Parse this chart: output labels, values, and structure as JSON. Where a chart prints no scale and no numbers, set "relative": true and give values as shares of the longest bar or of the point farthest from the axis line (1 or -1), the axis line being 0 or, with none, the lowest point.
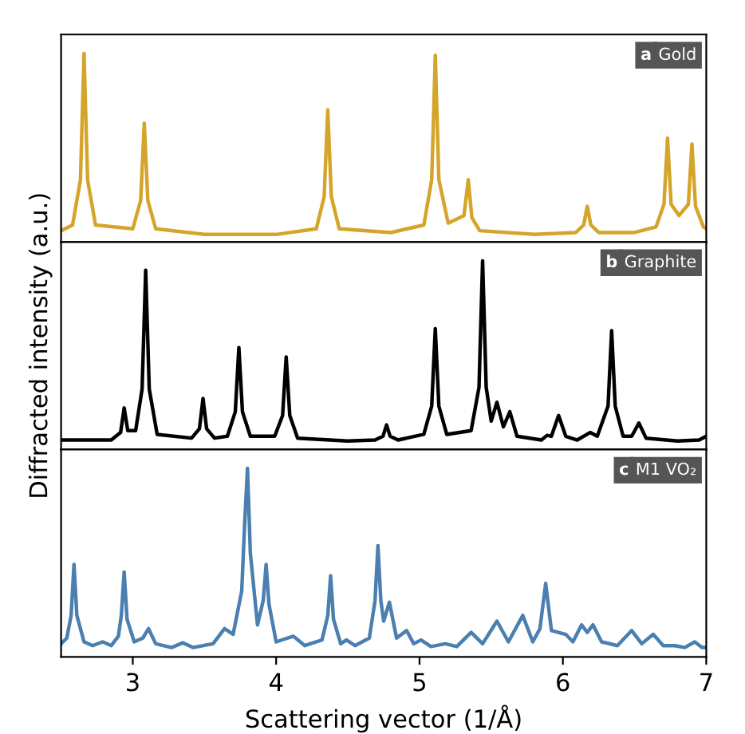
{
  "chart_data": [
    {
      "type": "line",
      "relative": true,
      "xlim": [
        2.5,
        7
      ],
      "xticks": [
        3,
        4,
        5,
        6,
        7
      ],
      "tick_labels": false,
      "annotations": [
        "a"
      ],
      "legend": false,
      "grid": false,
      "series": [
        {
          "name": "Gold",
          "color": "#d4a52a",
          "x": [
            2.5,
            2.58,
            2.635,
            2.66,
            2.685,
            2.74,
            3.0,
            3.055,
            3.08,
            3.105,
            3.16,
            3.5,
            4.0,
            4.28,
            4.335,
            4.36,
            4.385,
            4.44,
            4.8,
            5.03,
            5.085,
            5.11,
            5.135,
            5.2,
            5.31,
            5.34,
            5.365,
            5.42,
            5.8,
            6.09,
            6.145,
            6.17,
            6.195,
            6.25,
            6.5,
            6.65,
            6.705,
            6.73,
            6.755,
            6.81,
            6.875,
            6.9,
            6.925,
            6.98,
            7.0
          ],
          "values": [
            0.06,
            0.09,
            0.33,
            1.0,
            0.33,
            0.09,
            0.07,
            0.22,
            0.63,
            0.22,
            0.07,
            0.04,
            0.04,
            0.07,
            0.24,
            0.7,
            0.24,
            0.07,
            0.05,
            0.09,
            0.33,
            0.99,
            0.33,
            0.1,
            0.14,
            0.33,
            0.13,
            0.06,
            0.04,
            0.05,
            0.09,
            0.19,
            0.09,
            0.05,
            0.05,
            0.08,
            0.2,
            0.55,
            0.2,
            0.14,
            0.2,
            0.52,
            0.19,
            0.08,
            0.07
          ]
        }
      ]
    },
    {
      "type": "line",
      "relative": true,
      "xlim": [
        2.5,
        7
      ],
      "xticks": [
        3,
        4,
        5,
        6,
        7
      ],
      "tick_labels": false,
      "annotations": [
        "b"
      ],
      "ylabel": "Diffracted intensity (a.u.)",
      "legend": false,
      "grid": false,
      "series": [
        {
          "name": "Graphite",
          "color": "#000000",
          "x": [
            2.5,
            2.85,
            2.915,
            2.94,
            2.965,
            3.02,
            3.065,
            3.09,
            3.115,
            3.17,
            3.41,
            3.465,
            3.49,
            3.515,
            3.57,
            3.66,
            3.715,
            3.74,
            3.765,
            3.82,
            3.99,
            4.045,
            4.07,
            4.095,
            4.15,
            4.5,
            4.69,
            4.745,
            4.77,
            4.795,
            4.85,
            5.03,
            5.085,
            5.11,
            5.135,
            5.19,
            5.36,
            5.415,
            5.44,
            5.465,
            5.5,
            5.54,
            5.585,
            5.63,
            5.68,
            5.85,
            5.89,
            5.92,
            5.97,
            6.02,
            6.1,
            6.19,
            6.24,
            6.315,
            6.34,
            6.365,
            6.42,
            6.48,
            6.53,
            6.58,
            6.8,
            6.95,
            7.0
          ],
          "values": [
            0.05,
            0.05,
            0.09,
            0.22,
            0.1,
            0.1,
            0.32,
            0.95,
            0.32,
            0.08,
            0.06,
            0.11,
            0.27,
            0.11,
            0.06,
            0.07,
            0.2,
            0.54,
            0.2,
            0.07,
            0.07,
            0.18,
            0.49,
            0.18,
            0.06,
            0.045,
            0.05,
            0.07,
            0.13,
            0.07,
            0.05,
            0.08,
            0.23,
            0.64,
            0.23,
            0.08,
            0.1,
            0.33,
            1.0,
            0.33,
            0.15,
            0.25,
            0.12,
            0.2,
            0.07,
            0.05,
            0.075,
            0.07,
            0.18,
            0.07,
            0.05,
            0.09,
            0.07,
            0.23,
            0.63,
            0.23,
            0.07,
            0.07,
            0.14,
            0.06,
            0.045,
            0.05,
            0.07
          ]
        }
      ]
    },
    {
      "type": "line",
      "relative": true,
      "xlim": [
        2.5,
        7
      ],
      "xticks": [
        3,
        4,
        5,
        6,
        7
      ],
      "tick_labels": "x",
      "annotations": [
        "c"
      ],
      "xlabel": "Scattering vector (1/Å)",
      "legend": false,
      "grid": false,
      "series": [
        {
          "name": "M1 VO₂",
          "color": "#4a7fb0",
          "x": [
            2.5,
            2.54,
            2.57,
            2.59,
            2.61,
            2.66,
            2.72,
            2.79,
            2.85,
            2.9,
            2.92,
            2.94,
            2.96,
            3.01,
            3.07,
            3.11,
            3.16,
            3.27,
            3.35,
            3.42,
            3.56,
            3.64,
            3.7,
            3.76,
            3.78,
            3.8,
            3.82,
            3.87,
            3.91,
            3.93,
            3.95,
            4.0,
            4.12,
            4.2,
            4.32,
            4.36,
            4.38,
            4.4,
            4.45,
            4.49,
            4.55,
            4.65,
            4.69,
            4.71,
            4.73,
            4.75,
            4.79,
            4.84,
            4.91,
            4.96,
            5.01,
            5.08,
            5.18,
            5.26,
            5.36,
            5.44,
            5.54,
            5.62,
            5.72,
            5.79,
            5.84,
            5.88,
            5.92,
            6.02,
            6.07,
            6.13,
            6.17,
            6.21,
            6.27,
            6.38,
            6.48,
            6.55,
            6.63,
            6.7,
            6.78,
            6.85,
            6.92,
            6.97,
            7.0
          ],
          "values": [
            0.07,
            0.1,
            0.22,
            0.49,
            0.22,
            0.08,
            0.06,
            0.08,
            0.06,
            0.11,
            0.22,
            0.45,
            0.2,
            0.08,
            0.1,
            0.15,
            0.07,
            0.05,
            0.075,
            0.05,
            0.07,
            0.15,
            0.12,
            0.35,
            0.7,
            1.0,
            0.55,
            0.17,
            0.3,
            0.49,
            0.28,
            0.08,
            0.11,
            0.06,
            0.09,
            0.22,
            0.43,
            0.2,
            0.07,
            0.09,
            0.06,
            0.1,
            0.3,
            0.59,
            0.3,
            0.19,
            0.29,
            0.1,
            0.14,
            0.07,
            0.09,
            0.055,
            0.07,
            0.055,
            0.13,
            0.07,
            0.19,
            0.08,
            0.22,
            0.08,
            0.15,
            0.39,
            0.14,
            0.12,
            0.08,
            0.17,
            0.13,
            0.17,
            0.08,
            0.06,
            0.14,
            0.07,
            0.12,
            0.06,
            0.06,
            0.05,
            0.08,
            0.05,
            0.05
          ]
        }
      ]
    }
  ]
}
